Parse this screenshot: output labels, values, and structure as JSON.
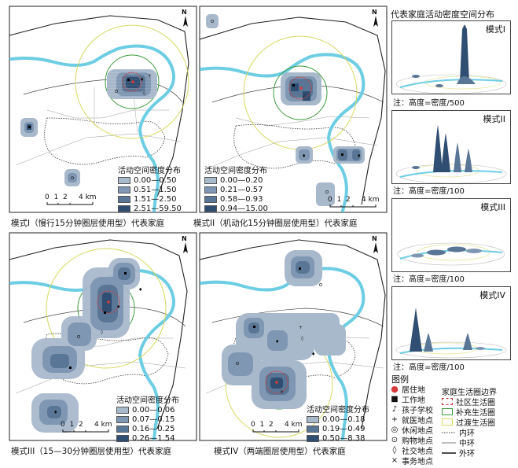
{
  "right_title": "代表家庭活动密度空间分布",
  "legend_title": "图例",
  "boundary_title": "家庭生活圈边界",
  "panels": [
    {
      "id": "mode1",
      "caption": "模式I（慢行15分钟圈层使用型）代表家庭",
      "legend_title": "活动空间密度分布",
      "classes": [
        "0.00—0.50",
        "0.51—1.50",
        "1.51—2.50",
        "2.51—59.50"
      ]
    },
    {
      "id": "mode2",
      "caption": "模式II（机动化15分钟圈层使用型）代表家庭",
      "legend_title": "活动空间密度分布",
      "classes": [
        "0.00—0.20",
        "0.21—0.57",
        "0.58—0.93",
        "0.94—15.00"
      ]
    },
    {
      "id": "mode3",
      "caption": "模式III（15—30分钟圈层使用型）代表家庭",
      "legend_title": "活动空间密度分布",
      "classes": [
        "0.00—0.06",
        "0.07—0.15",
        "0.16—0.25",
        "0.26—1.54"
      ]
    },
    {
      "id": "mode4",
      "caption": "模式IV（两端圈层使用型）代表家庭",
      "legend_title": "活动空间密度分布",
      "classes": [
        "0.00—0.18",
        "0.19—0.49",
        "0.50—8.38"
      ]
    }
  ],
  "scale": {
    "ticks": [
      "0",
      "1",
      "2",
      "4 km"
    ]
  },
  "north_label": "N",
  "renders": [
    {
      "title": "模式I",
      "note": "注：高度=密度/500"
    },
    {
      "title": "模式II",
      "note": "注：高度=密度/100"
    },
    {
      "title": "模式III",
      "note": "注：高度=密度/100"
    },
    {
      "title": "模式IV",
      "note": "注：高度=密度/100"
    }
  ],
  "legend_points": [
    "居住地",
    "工作地",
    "孩子学校",
    "就医地点",
    "休闲地点",
    "购物地点",
    "社交地点",
    "事务地点"
  ],
  "legend_boundaries": [
    "社区生活圈",
    "补充生活圈",
    "过渡生活圈",
    "内环",
    "中环",
    "外环"
  ],
  "colors": {
    "class1": "#a9b9cc",
    "class2": "#7f97b2",
    "class3": "#5a7696",
    "class4": "#2f4e72",
    "river": "#6ccde3",
    "community": "#d83a3a",
    "supplement": "#3c9a3c",
    "transition": "#d7d760"
  }
}
